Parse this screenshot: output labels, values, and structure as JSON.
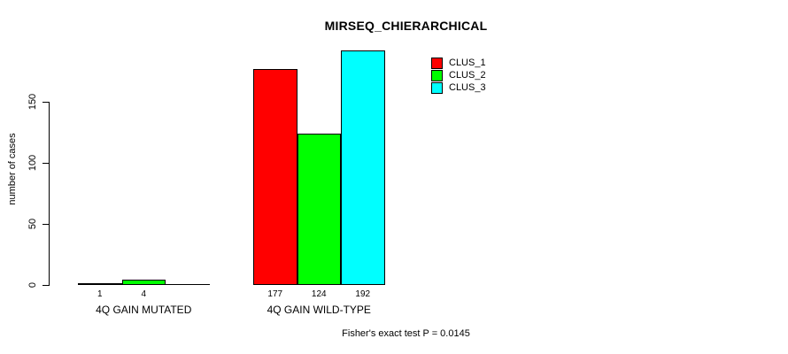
{
  "page": {
    "background": "#ffffff",
    "text_color": "#000000"
  },
  "chart_data": {
    "type": "bar",
    "title": "MIRSEQ_CHIERARCHICAL",
    "ylabel": "number of cases",
    "xlabel": "",
    "ylim": [
      0,
      150
    ],
    "yticks": [
      0,
      50,
      100,
      150
    ],
    "grid": false,
    "categories": [
      "4Q GAIN MUTATED",
      "4Q GAIN WILD-TYPE"
    ],
    "series": [
      {
        "name": "CLUS_1",
        "color": "#ff0000",
        "values": [
          1,
          177
        ]
      },
      {
        "name": "CLUS_2",
        "color": "#00ff00",
        "values": [
          4,
          124
        ]
      },
      {
        "name": "CLUS_3",
        "color": "#00ffff",
        "values": [
          0,
          192
        ]
      }
    ],
    "bar_value_labels": [
      [
        "1",
        "4",
        ""
      ],
      [
        "177",
        "124",
        "192"
      ]
    ],
    "legend": {
      "position": "top-right",
      "entries": [
        "CLUS_1",
        "CLUS_2",
        "CLUS_3"
      ],
      "colors": [
        "#ff0000",
        "#00ff00",
        "#00ffff"
      ]
    },
    "footnote": "Fisher's exact test P = 0.0145",
    "axis_color": "#000000"
  }
}
